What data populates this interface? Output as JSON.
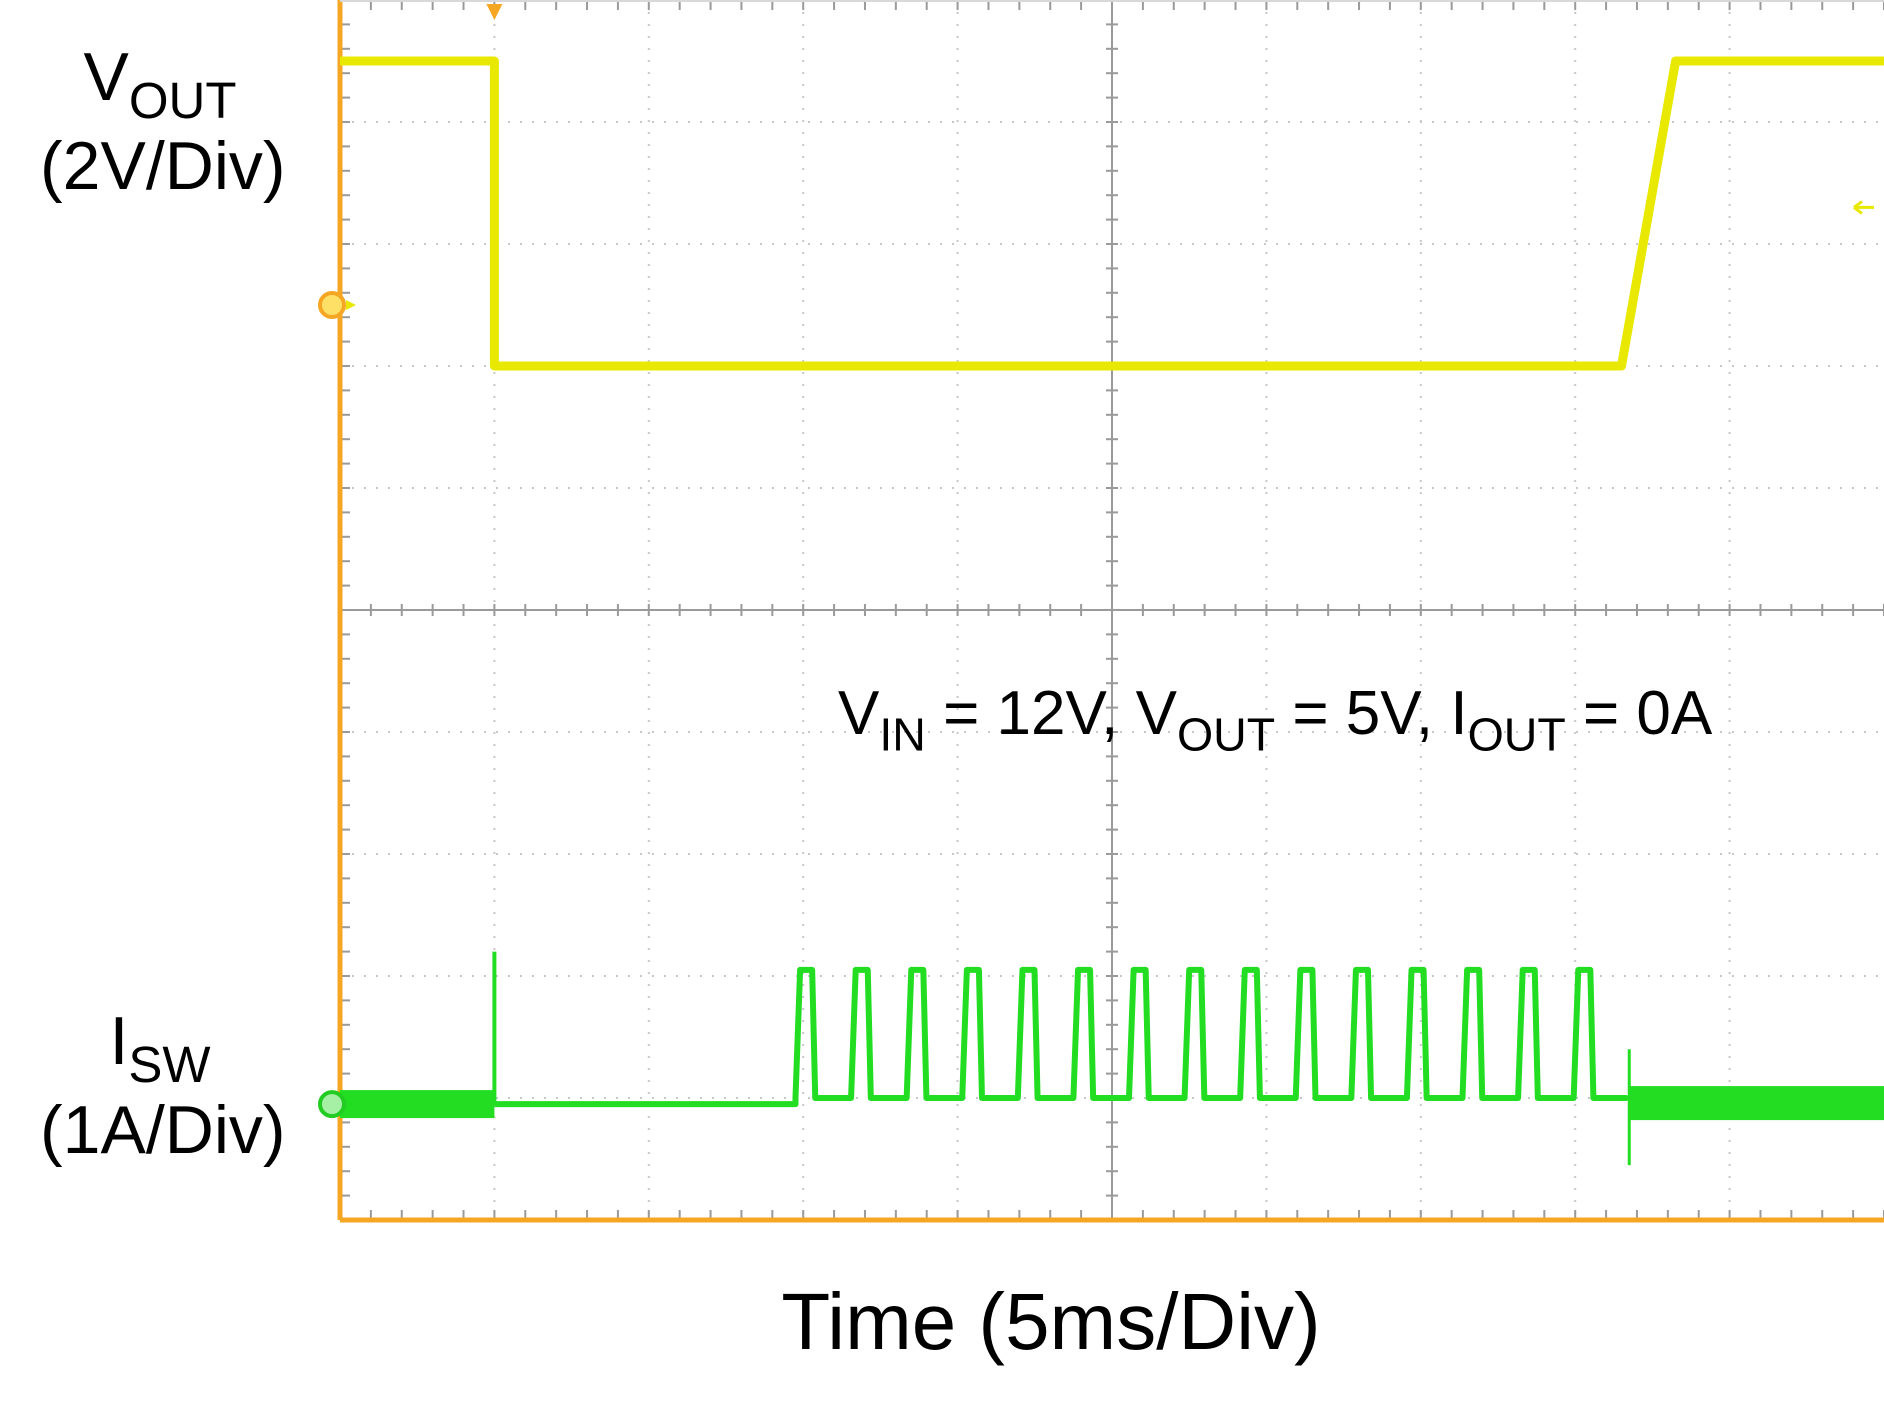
{
  "chart_data": {
    "type": "line",
    "xlabel": "Time (5ms/Div)",
    "x_divisions": 10,
    "y_divisions": 10,
    "grid": true,
    "channels": [
      {
        "id": "1",
        "label_main": "V",
        "label_sub": "OUT",
        "scale": "(2V/Div)",
        "color": "#e8e800",
        "marker_color": "#f5a623",
        "level_div": 7.5,
        "trace_div": [
          [
            0,
            9.5
          ],
          [
            1.0,
            9.5
          ],
          [
            1.0,
            7.0
          ],
          [
            8.3,
            7.0
          ],
          [
            8.65,
            9.5
          ],
          [
            10,
            9.5
          ]
        ]
      },
      {
        "id": "4",
        "label_main": "I",
        "label_sub": "SW",
        "scale": "(1A/Div)",
        "color": "#22dd22",
        "marker_color": "#22cc22",
        "level_div": 0.95,
        "spike_div": [
          1.0,
          2.2
        ],
        "pulses_start_div": 2.95,
        "pulse_period_div": 0.36,
        "pulse_count": 15,
        "pulse_top_div": 2.05,
        "pulse_base_div": 1.0,
        "trace_end_div": 8.3
      }
    ],
    "annotation": {
      "v_main": "V",
      "v_sub": "IN",
      "v_val": " = 12V, ",
      "o_main": "V",
      "o_sub": "OUT",
      "o_val": " = 5V, ",
      "i_main": "I",
      "i_sub": "OUT",
      "i_val": " = 0A"
    }
  }
}
